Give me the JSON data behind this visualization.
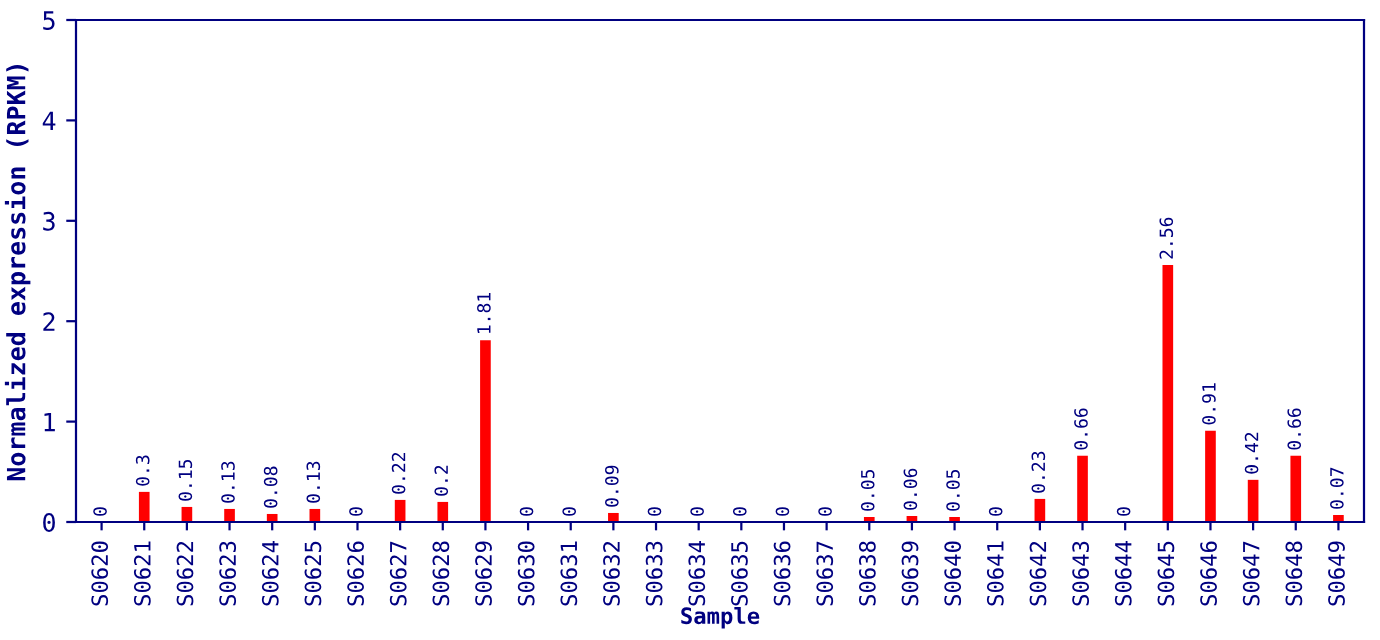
{
  "chart_data": {
    "type": "bar",
    "xlabel": "Sample",
    "ylabel": "Normalized expression (RPKM)",
    "categories": [
      "S0620",
      "S0621",
      "S0622",
      "S0623",
      "S0624",
      "S0625",
      "S0626",
      "S0627",
      "S0628",
      "S0629",
      "S0630",
      "S0631",
      "S0632",
      "S0633",
      "S0634",
      "S0635",
      "S0636",
      "S0637",
      "S0638",
      "S0639",
      "S0640",
      "S0641",
      "S0642",
      "S0643",
      "S0644",
      "S0645",
      "S0646",
      "S0647",
      "S0648",
      "S0649"
    ],
    "values": [
      0,
      0.3,
      0.15,
      0.13,
      0.08,
      0.13,
      0,
      0.22,
      0.2,
      1.81,
      0,
      0,
      0.09,
      0,
      0,
      0,
      0,
      0,
      0.05,
      0.06,
      0.05,
      0,
      0.23,
      0.66,
      0,
      2.56,
      0.91,
      0.42,
      0.66,
      0.07
    ],
    "color": "#ff0000",
    "ylim": [
      0,
      5
    ],
    "yticks": [
      0,
      1,
      2,
      3,
      4,
      5
    ],
    "data_labels": true,
    "grid": false,
    "legend": false
  }
}
